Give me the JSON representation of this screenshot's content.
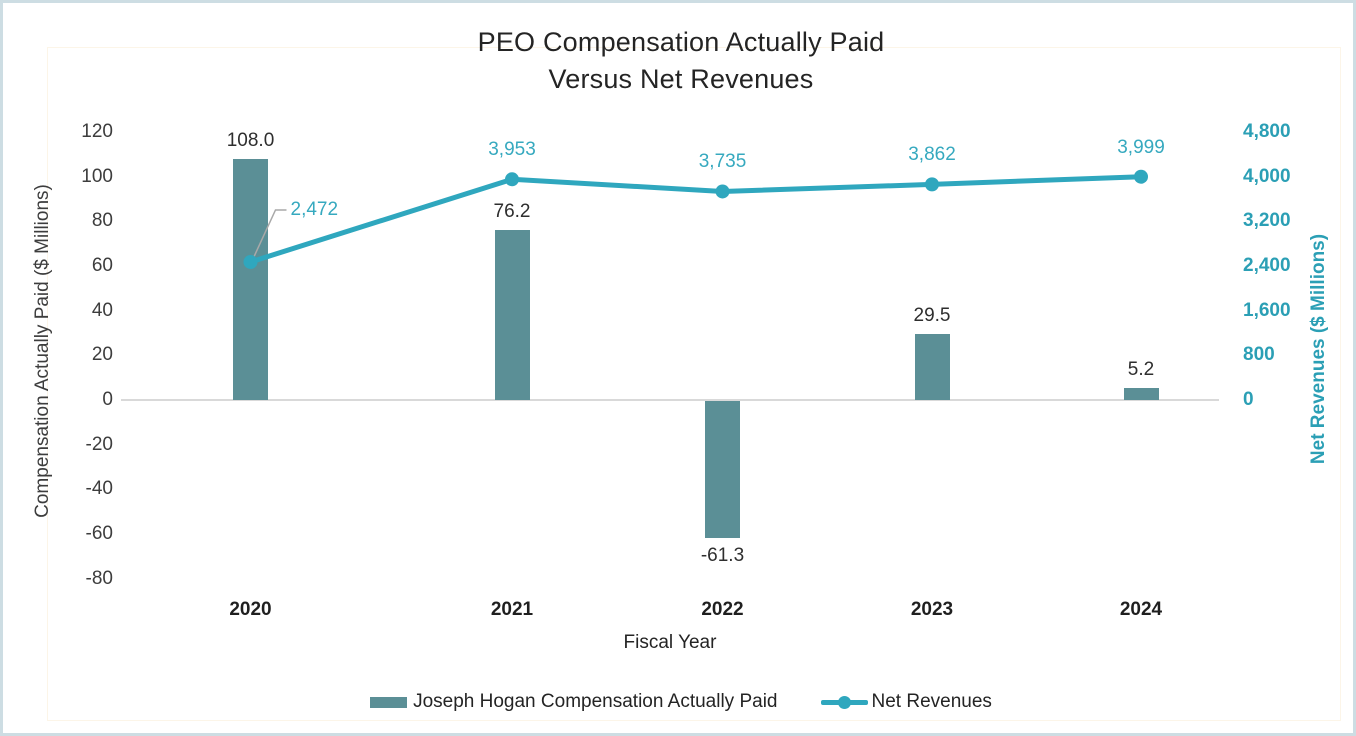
{
  "chart_data": {
    "type": "combo",
    "title": "PEO Compensation Actually Paid",
    "subtitle": "Versus Net Revenues",
    "xlabel": "Fiscal Year",
    "categories": [
      "2020",
      "2021",
      "2022",
      "2023",
      "2024"
    ],
    "series": [
      {
        "name": "Joseph Hogan Compensation Actually Paid",
        "chart_type": "bar",
        "axis": "left",
        "color": "#5b8f96",
        "values": [
          108.0,
          76.2,
          -61.3,
          29.5,
          5.2
        ],
        "data_labels": [
          "108.0",
          "76.2",
          "-61.3",
          "29.5",
          "5.2"
        ]
      },
      {
        "name": "Net Revenues",
        "chart_type": "line",
        "axis": "right",
        "color": "#2fa7be",
        "label_color": "#36a9bf",
        "values": [
          2472,
          3953,
          3735,
          3862,
          3999
        ],
        "data_labels": [
          "2,472",
          "3,953",
          "3,735",
          "3,862",
          "3,999"
        ]
      }
    ],
    "left_axis": {
      "title": "Compensation Actually Paid ($ Millions)",
      "range": [
        -80,
        120
      ],
      "tick_interval": 20,
      "ticks": [
        120,
        100,
        80,
        60,
        40,
        20,
        0,
        -20,
        -40,
        -60,
        -80
      ],
      "tick_labels": [
        "120",
        "100",
        "80",
        "60",
        "40",
        "20",
        "0",
        "-20",
        "-40",
        "-60",
        "-80"
      ]
    },
    "right_axis": {
      "title": "Net Revenues ($ Millions)",
      "range": [
        0,
        4800
      ],
      "tick_interval": 800,
      "ticks": [
        4800,
        4000,
        3200,
        2400,
        1600,
        800,
        0
      ],
      "tick_labels": [
        "4,800",
        "4,000",
        "3,200",
        "2,400",
        "1,600",
        "800",
        "0"
      ],
      "color": "#2b9fb5"
    },
    "grid": false,
    "legend_position": "bottom",
    "annotations": {
      "first_line_label_has_leader": true,
      "leader_line_color": "#a9a9a9",
      "zero_line_color": "#d9d9d9"
    }
  }
}
